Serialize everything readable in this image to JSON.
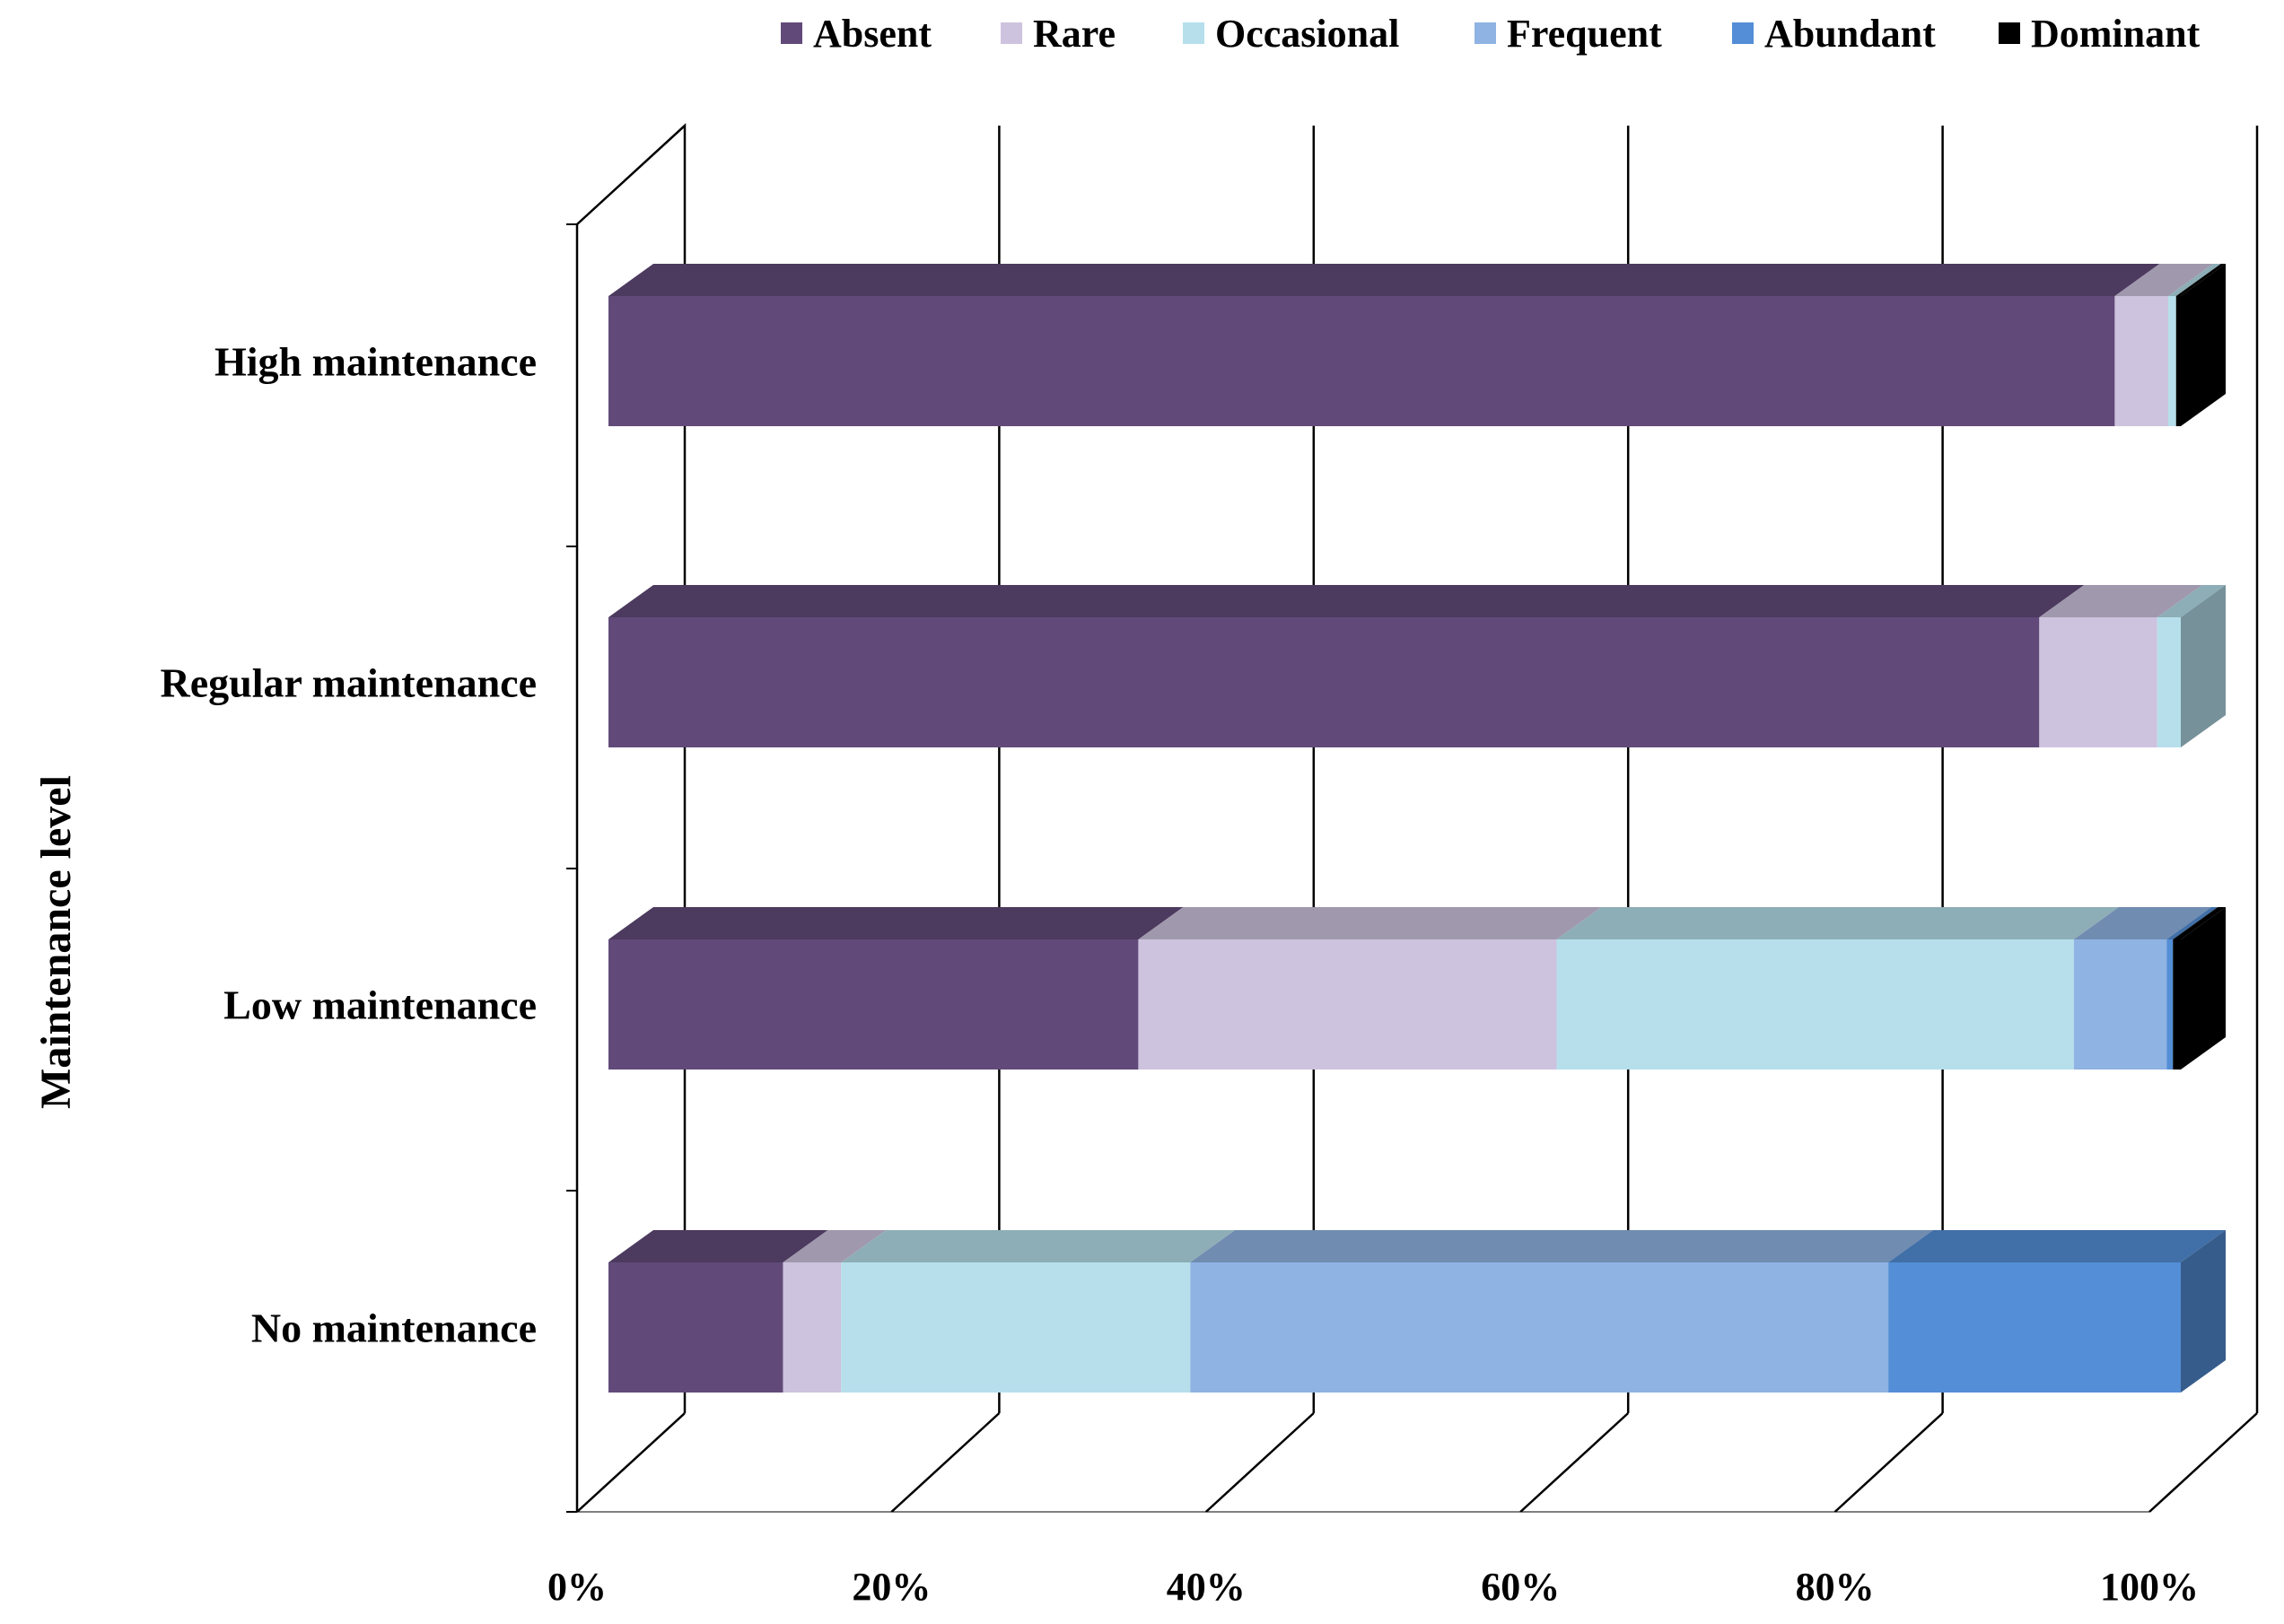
{
  "chart_data": {
    "type": "bar",
    "orientation": "horizontal",
    "stacking": "percent",
    "style": "3d",
    "title": "",
    "xlabel": "",
    "ylabel": "Maintenance level",
    "xlim": [
      0,
      100
    ],
    "x_ticks": [
      {
        "value": 0,
        "label": "0%"
      },
      {
        "value": 20,
        "label": "20%"
      },
      {
        "value": 40,
        "label": "40%"
      },
      {
        "value": 60,
        "label": "60%"
      },
      {
        "value": 80,
        "label": "80%"
      },
      {
        "value": 100,
        "label": "100%"
      }
    ],
    "grid": true,
    "legend_position": "top-right",
    "categories": [
      "High maintenance",
      "Regular maintenance",
      "Low maintenance",
      "No maintenance"
    ],
    "series": [
      {
        "name": "Absent",
        "color": "#614a7a",
        "values": [
          95.8,
          91.0,
          33.7,
          11.1
        ]
      },
      {
        "name": "Rare",
        "color": "#cdc3de",
        "values": [
          3.4,
          7.5,
          26.6,
          3.7
        ]
      },
      {
        "name": "Occasional",
        "color": "#b6dfeb",
        "values": [
          0.5,
          1.5,
          32.9,
          22.2
        ]
      },
      {
        "name": "Frequent",
        "color": "#8fb3e3",
        "values": [
          0.0,
          0.0,
          5.9,
          44.4
        ]
      },
      {
        "name": "Abundant",
        "color": "#538ed6",
        "values": [
          0.0,
          0.0,
          0.4,
          18.6
        ]
      },
      {
        "name": "Dominant",
        "color": "#000000",
        "values": [
          0.3,
          0.0,
          0.5,
          0.0
        ]
      }
    ]
  }
}
